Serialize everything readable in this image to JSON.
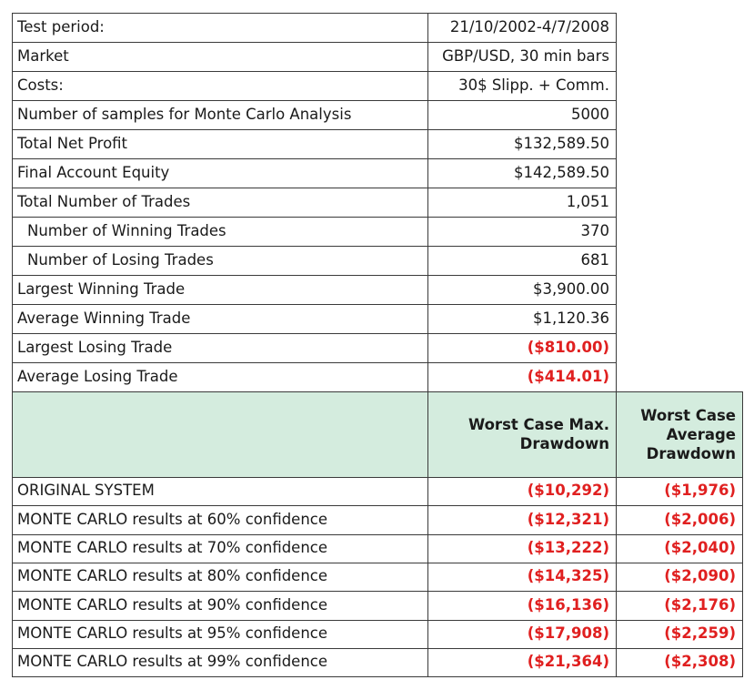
{
  "summary_rows": [
    {
      "label": "Test period:",
      "value": "21/10/2002-4/7/2008",
      "indent": false,
      "negative": false
    },
    {
      "label": "Market",
      "value": "GBP/USD, 30 min bars",
      "indent": false,
      "negative": false
    },
    {
      "label": "Costs:",
      "value": "30$ Slipp. + Comm.",
      "indent": false,
      "negative": false
    },
    {
      "label": "Number of samples for Monte Carlo Analysis",
      "value": "5000",
      "indent": false,
      "negative": false
    },
    {
      "label": "Total Net Profit",
      "value": "$132,589.50",
      "indent": false,
      "negative": false
    },
    {
      "label": "Final Account Equity",
      "value": "$142,589.50",
      "indent": false,
      "negative": false
    },
    {
      "label": "Total Number of Trades",
      "value": "1,051",
      "indent": false,
      "negative": false
    },
    {
      "label": "Number of Winning Trades",
      "value": "370",
      "indent": true,
      "negative": false
    },
    {
      "label": "Number of Losing Trades",
      "value": "681",
      "indent": true,
      "negative": false
    },
    {
      "label": "Largest Winning Trade",
      "value": "$3,900.00",
      "indent": false,
      "negative": false
    },
    {
      "label": "Average Winning Trade",
      "value": "$1,120.36",
      "indent": false,
      "negative": false
    },
    {
      "label": "Largest Losing Trade",
      "value": "($810.00)",
      "indent": false,
      "negative": true
    },
    {
      "label": "Average Losing Trade",
      "value": "($414.01)",
      "indent": false,
      "negative": true
    }
  ],
  "header": {
    "col1": "Worst Case Max. Drawdown",
    "col2": "Worst Case Average Drawdown"
  },
  "drawdown_rows": [
    {
      "label": "ORIGINAL SYSTEM",
      "max": "($10,292)",
      "avg": "($1,976)"
    },
    {
      "label": "MONTE CARLO results at 60% confidence",
      "max": "($12,321)",
      "avg": "($2,006)"
    },
    {
      "label": "MONTE CARLO results at 70% confidence",
      "max": "($13,222)",
      "avg": "($2,040)"
    },
    {
      "label": "MONTE CARLO results at 80% confidence",
      "max": "($14,325)",
      "avg": "($2,090)"
    },
    {
      "label": "MONTE CARLO results at 90% confidence",
      "max": "($16,136)",
      "avg": "($2,176)"
    },
    {
      "label": "MONTE CARLO results at 95% confidence",
      "max": "($17,908)",
      "avg": "($2,259)"
    },
    {
      "label": "MONTE CARLO results at 99% confidence",
      "max": "($21,364)",
      "avg": "($2,308)"
    }
  ]
}
